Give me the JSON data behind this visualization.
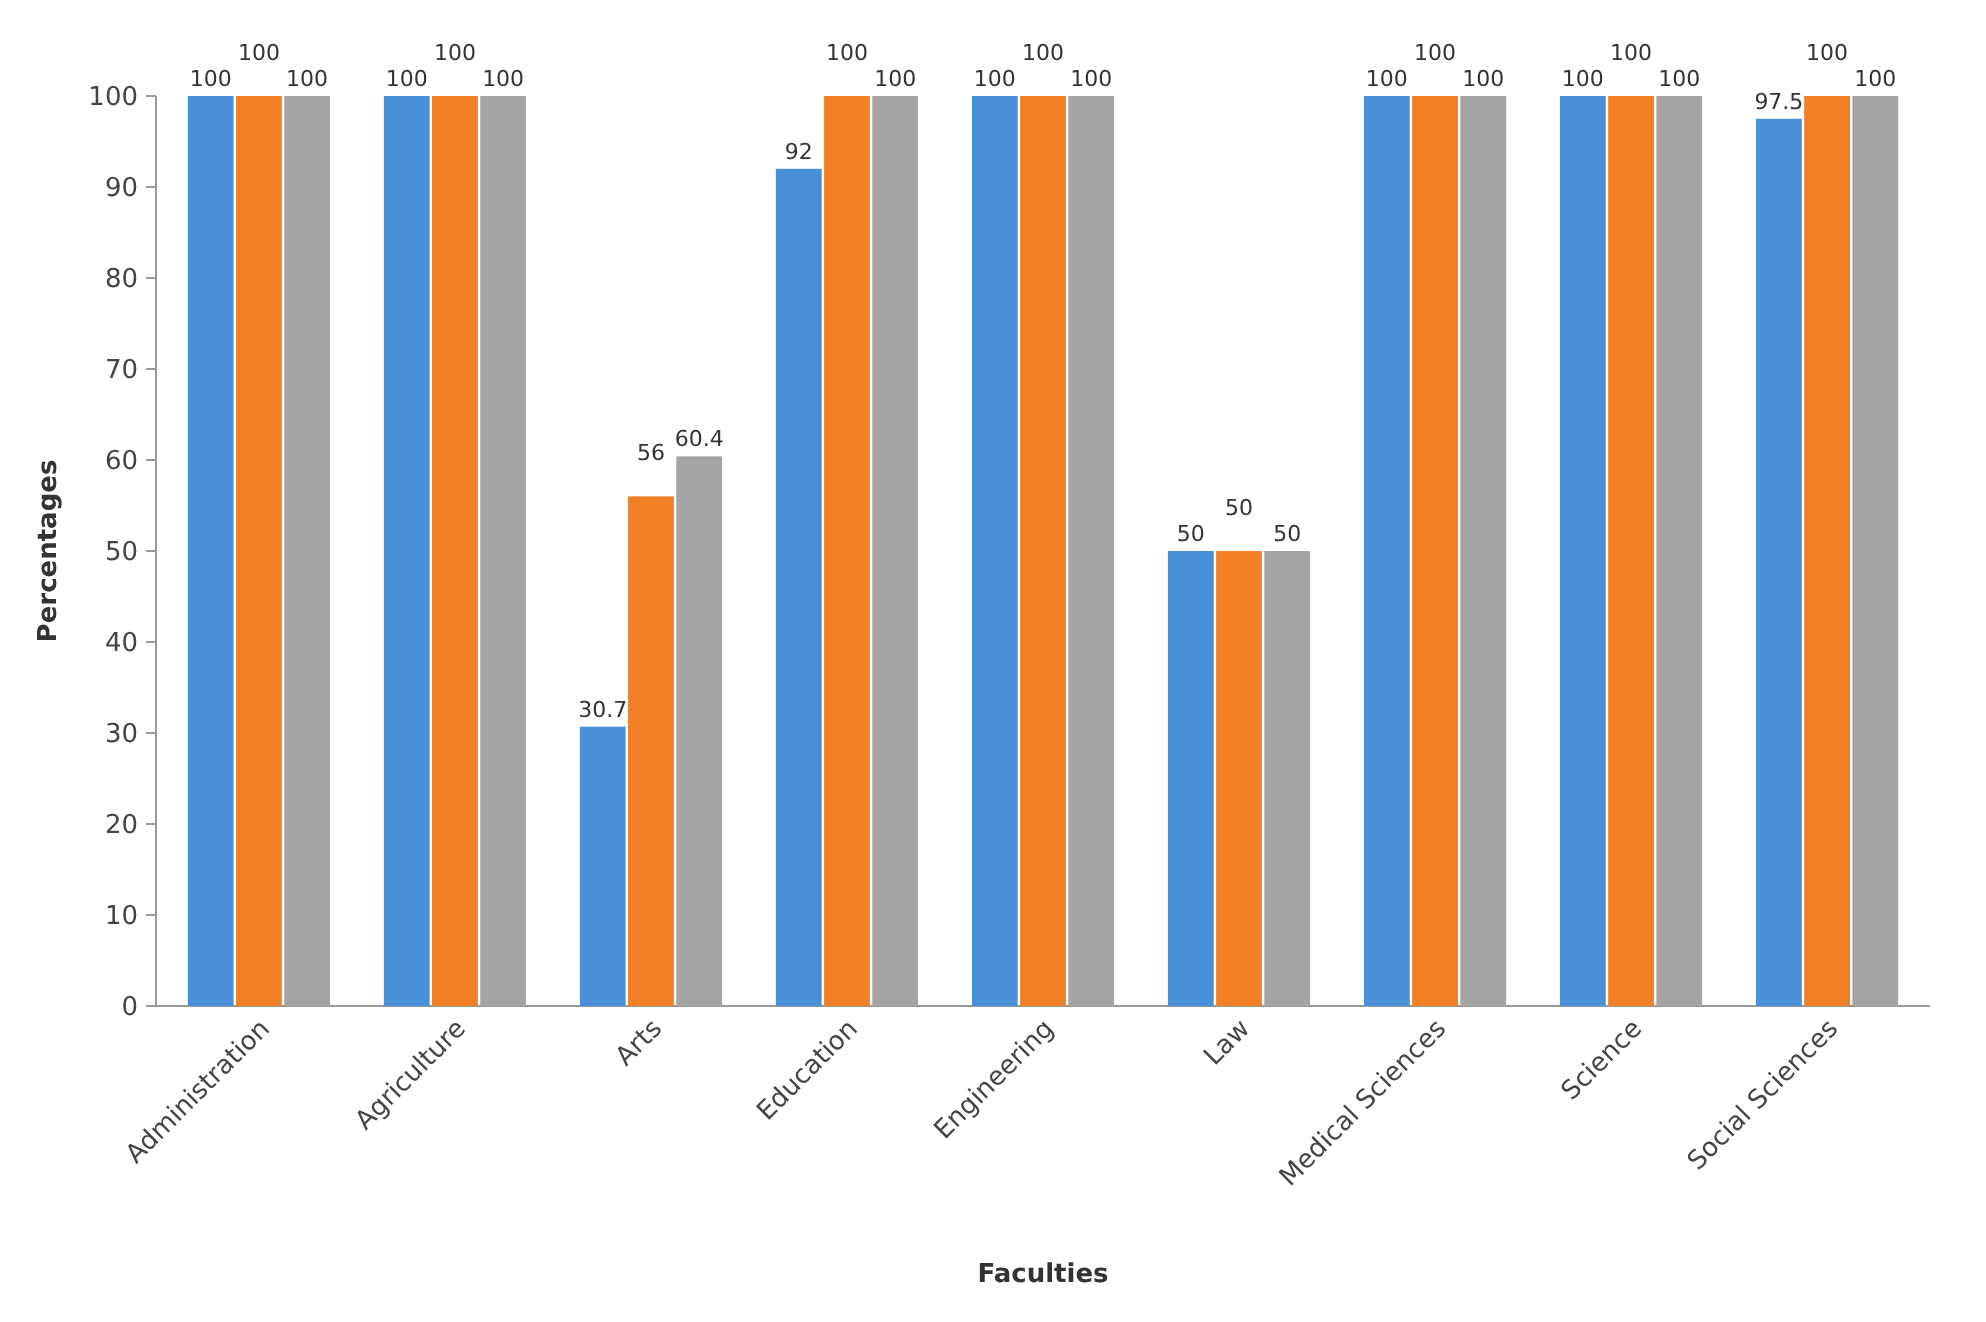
{
  "chart_data": {
    "type": "bar",
    "xlabel": "Faculties",
    "ylabel": "Percentages",
    "categories": [
      "Administration",
      "Agriculture",
      "Arts",
      "Education",
      "Engineering",
      "Law",
      "Medical Sciences",
      "Science",
      "Social Sciences"
    ],
    "series": [
      {
        "color": "#4a90d9",
        "values": [
          100,
          100,
          30.7,
          92,
          100,
          50,
          100,
          100,
          97.5
        ]
      },
      {
        "color": "#f07f26",
        "values": [
          100,
          100,
          56,
          100,
          100,
          50,
          100,
          100,
          100
        ]
      },
      {
        "color": "#a5a5a5",
        "values": [
          100,
          100,
          60.4,
          100,
          100,
          50,
          100,
          100,
          100
        ]
      }
    ],
    "ylim": [
      0,
      100
    ],
    "yticks": [
      0,
      10,
      20,
      30,
      40,
      50,
      60,
      70,
      80,
      90,
      100
    ],
    "grid": false,
    "data_labels": true
  }
}
